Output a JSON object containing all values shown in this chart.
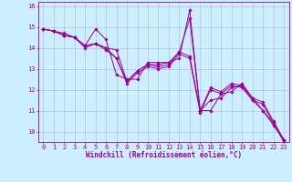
{
  "lines": [
    {
      "x": [
        0,
        1,
        2,
        3,
        4,
        5,
        6,
        7,
        8,
        9,
        10,
        11,
        12,
        13,
        14,
        15,
        16,
        17,
        18,
        19,
        20,
        21,
        22,
        23
      ],
      "y": [
        14.9,
        14.8,
        14.7,
        14.5,
        14.1,
        14.9,
        14.4,
        12.7,
        12.5,
        12.5,
        13.3,
        13.3,
        13.3,
        13.5,
        15.8,
        11.0,
        11.0,
        11.8,
        11.9,
        12.3,
        11.6,
        11.0,
        10.4,
        9.6
      ]
    },
    {
      "x": [
        0,
        1,
        2,
        3,
        4,
        5,
        6,
        7,
        8,
        9,
        10,
        11,
        12,
        13,
        14,
        15,
        16,
        17,
        18,
        19,
        20,
        21,
        22,
        23
      ],
      "y": [
        14.9,
        14.8,
        14.6,
        14.5,
        14.1,
        14.2,
        14.0,
        13.9,
        12.4,
        12.9,
        13.2,
        13.2,
        13.3,
        13.8,
        15.4,
        11.0,
        11.5,
        11.6,
        12.1,
        12.2,
        11.5,
        11.0,
        10.3,
        9.6
      ]
    },
    {
      "x": [
        0,
        1,
        2,
        3,
        4,
        5,
        6,
        7,
        8,
        9,
        10,
        11,
        12,
        13,
        14,
        15,
        16,
        17,
        18,
        19,
        20,
        21,
        22,
        23
      ],
      "y": [
        14.9,
        14.8,
        14.6,
        14.5,
        14.1,
        14.2,
        14.0,
        13.5,
        12.4,
        12.9,
        13.2,
        13.1,
        13.2,
        13.8,
        13.6,
        11.0,
        12.1,
        11.9,
        12.3,
        12.2,
        11.6,
        11.4,
        10.5,
        9.6
      ]
    },
    {
      "x": [
        0,
        1,
        2,
        3,
        4,
        5,
        6,
        7,
        8,
        9,
        10,
        11,
        12,
        13,
        14,
        15,
        16,
        17,
        18,
        19,
        20,
        21,
        22,
        23
      ],
      "y": [
        14.9,
        14.8,
        14.6,
        14.5,
        14.0,
        14.2,
        13.9,
        13.5,
        12.3,
        12.8,
        13.1,
        13.0,
        13.1,
        13.7,
        13.5,
        10.9,
        12.0,
        11.8,
        12.2,
        12.1,
        11.5,
        11.3,
        10.4,
        9.5
      ]
    }
  ],
  "color": "#990099",
  "marker": "D",
  "markersize": 1.8,
  "linewidth": 0.7,
  "xlim": [
    -0.5,
    23.5
  ],
  "ylim": [
    9.5,
    16.2
  ],
  "yticks": [
    10,
    11,
    12,
    13,
    14,
    15,
    16
  ],
  "xticks": [
    0,
    1,
    2,
    3,
    4,
    5,
    6,
    7,
    8,
    9,
    10,
    11,
    12,
    13,
    14,
    15,
    16,
    17,
    18,
    19,
    20,
    21,
    22,
    23
  ],
  "xlabel": "Windchill (Refroidissement éolien,°C)",
  "background_color": "#cceeff",
  "grid_color": "#aab8cc",
  "label_color": "#990099",
  "tick_color": "#990099",
  "xlabel_fontsize": 5.5,
  "tick_fontsize": 5.0
}
